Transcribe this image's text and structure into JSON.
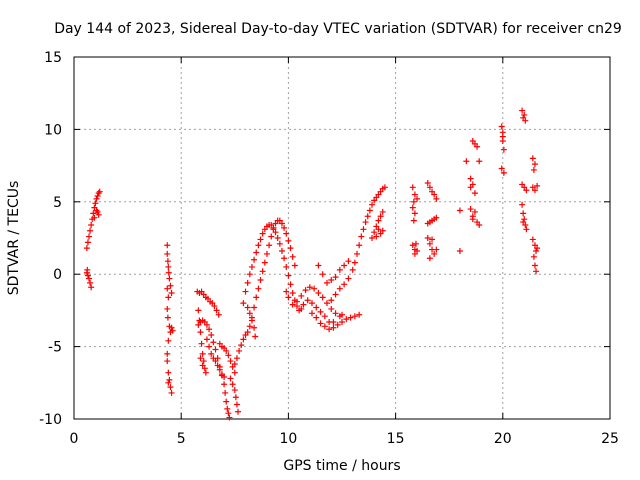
{
  "chart_data": {
    "type": "scatter",
    "title": "Day 144 of 2023, Sidereal Day-to-day VTEC variation (SDTVAR) for receiver cn29",
    "xlabel": "GPS time / hours",
    "ylabel": "SDTVAR / TECUs",
    "xlim": [
      0,
      25
    ],
    "ylim": [
      -10,
      15
    ],
    "xticks": [
      "0",
      "5",
      "10",
      "15",
      "20",
      "25"
    ],
    "yticks": [
      "-10",
      "-5",
      "0",
      "5",
      "10",
      "15"
    ],
    "grid": true,
    "marker": "+",
    "color": "#ff0000",
    "series": [
      {
        "name": "SDTVAR",
        "points": [
          [
            0.6,
            1.8
          ],
          [
            0.65,
            2.2
          ],
          [
            0.7,
            2.6
          ],
          [
            0.75,
            3.0
          ],
          [
            0.8,
            3.4
          ],
          [
            0.85,
            3.8
          ],
          [
            0.9,
            4.2
          ],
          [
            0.95,
            4.6
          ],
          [
            1.0,
            4.9
          ],
          [
            1.05,
            5.2
          ],
          [
            1.1,
            5.4
          ],
          [
            1.15,
            5.6
          ],
          [
            1.2,
            5.7
          ],
          [
            1.1,
            4.3
          ],
          [
            1.15,
            4.1
          ],
          [
            1.05,
            4.4
          ],
          [
            0.95,
            3.9
          ],
          [
            0.6,
            0.1
          ],
          [
            0.65,
            -0.1
          ],
          [
            0.7,
            -0.3
          ],
          [
            0.75,
            -0.6
          ],
          [
            0.8,
            -0.9
          ],
          [
            0.62,
            0.3
          ],
          [
            4.35,
            2.0
          ],
          [
            4.35,
            1.4
          ],
          [
            4.38,
            0.9
          ],
          [
            4.4,
            0.5
          ],
          [
            4.42,
            0.1
          ],
          [
            4.45,
            -0.3
          ],
          [
            4.5,
            -0.8
          ],
          [
            4.55,
            -1.3
          ],
          [
            4.35,
            -1.0
          ],
          [
            4.4,
            -1.6
          ],
          [
            4.35,
            -2.4
          ],
          [
            4.38,
            -3.0
          ],
          [
            4.45,
            -3.6
          ],
          [
            4.5,
            -4.0
          ],
          [
            4.4,
            -4.6
          ],
          [
            4.35,
            -5.5
          ],
          [
            4.35,
            -6.0
          ],
          [
            4.4,
            -6.8
          ],
          [
            4.45,
            -7.3
          ],
          [
            4.5,
            -7.8
          ],
          [
            4.55,
            -8.2
          ],
          [
            4.4,
            -7.5
          ],
          [
            4.55,
            -3.7
          ],
          [
            4.6,
            -3.9
          ],
          [
            5.75,
            -1.2
          ],
          [
            5.85,
            -1.3
          ],
          [
            5.95,
            -1.2
          ],
          [
            6.05,
            -1.4
          ],
          [
            6.15,
            -1.6
          ],
          [
            6.25,
            -1.7
          ],
          [
            6.35,
            -1.9
          ],
          [
            6.45,
            -2.0
          ],
          [
            6.55,
            -2.2
          ],
          [
            6.65,
            -2.5
          ],
          [
            6.75,
            -2.8
          ],
          [
            5.8,
            -2.5
          ],
          [
            5.85,
            -3.2
          ],
          [
            5.9,
            -4.0
          ],
          [
            5.95,
            -4.8
          ],
          [
            6.0,
            -5.5
          ],
          [
            6.05,
            -6.0
          ],
          [
            6.1,
            -6.5
          ],
          [
            6.15,
            -6.8
          ],
          [
            5.9,
            -5.8
          ],
          [
            6.0,
            -6.3
          ],
          [
            5.8,
            -3.5
          ],
          [
            5.9,
            -3.3
          ],
          [
            6.0,
            -3.2
          ],
          [
            6.1,
            -3.3
          ],
          [
            6.2,
            -3.5
          ],
          [
            6.3,
            -3.8
          ],
          [
            6.4,
            -4.2
          ],
          [
            6.5,
            -4.7
          ],
          [
            6.6,
            -5.2
          ],
          [
            6.7,
            -5.8
          ],
          [
            6.8,
            -6.4
          ],
          [
            6.9,
            -7.0
          ],
          [
            7.0,
            -7.6
          ],
          [
            7.05,
            -8.2
          ],
          [
            7.1,
            -8.8
          ],
          [
            7.15,
            -9.3
          ],
          [
            7.2,
            -9.6
          ],
          [
            7.25,
            -9.9
          ],
          [
            6.2,
            -4.5
          ],
          [
            6.3,
            -5.0
          ],
          [
            6.4,
            -5.5
          ],
          [
            6.5,
            -5.8
          ],
          [
            6.6,
            -6.0
          ],
          [
            6.7,
            -6.3
          ],
          [
            6.8,
            -6.6
          ],
          [
            6.9,
            -6.9
          ],
          [
            7.0,
            -7.1
          ],
          [
            6.8,
            -4.8
          ],
          [
            6.9,
            -5.0
          ],
          [
            7.0,
            -5.1
          ],
          [
            7.1,
            -5.3
          ],
          [
            7.2,
            -5.6
          ],
          [
            7.3,
            -6.0
          ],
          [
            7.4,
            -6.4
          ],
          [
            7.5,
            -6.8
          ],
          [
            7.3,
            -7.2
          ],
          [
            7.4,
            -7.6
          ],
          [
            7.5,
            -8.0
          ],
          [
            7.55,
            -8.5
          ],
          [
            7.6,
            -9.0
          ],
          [
            7.65,
            -9.5
          ],
          [
            7.5,
            -6.2
          ],
          [
            7.6,
            -5.8
          ],
          [
            7.7,
            -5.3
          ],
          [
            7.8,
            -4.9
          ],
          [
            7.9,
            -4.5
          ],
          [
            8.0,
            -4.2
          ],
          [
            8.1,
            -4.0
          ],
          [
            8.2,
            -3.6
          ],
          [
            8.3,
            -3.0
          ],
          [
            8.4,
            -2.3
          ],
          [
            8.5,
            -1.6
          ],
          [
            8.6,
            -1.0
          ],
          [
            8.7,
            -0.4
          ],
          [
            8.8,
            0.2
          ],
          [
            8.9,
            0.8
          ],
          [
            9.0,
            1.4
          ],
          [
            9.1,
            2.0
          ],
          [
            9.2,
            2.6
          ],
          [
            9.3,
            3.1
          ],
          [
            9.4,
            3.5
          ],
          [
            9.5,
            3.7
          ],
          [
            9.6,
            3.7
          ],
          [
            9.7,
            3.5
          ],
          [
            9.8,
            3.2
          ],
          [
            9.9,
            2.8
          ],
          [
            10.0,
            2.3
          ],
          [
            10.1,
            1.8
          ],
          [
            10.2,
            1.2
          ],
          [
            10.3,
            0.6
          ],
          [
            8.0,
            -1.2
          ],
          [
            8.1,
            -0.6
          ],
          [
            8.2,
            0.0
          ],
          [
            8.3,
            0.5
          ],
          [
            8.4,
            1.0
          ],
          [
            8.5,
            1.5
          ],
          [
            8.6,
            2.0
          ],
          [
            8.7,
            2.4
          ],
          [
            8.8,
            2.8
          ],
          [
            8.9,
            3.1
          ],
          [
            9.0,
            3.3
          ],
          [
            9.1,
            3.4
          ],
          [
            9.2,
            3.4
          ],
          [
            9.3,
            3.2
          ],
          [
            9.4,
            2.9
          ],
          [
            9.5,
            2.5
          ],
          [
            9.6,
            2.1
          ],
          [
            9.7,
            1.6
          ],
          [
            9.8,
            1.1
          ],
          [
            9.9,
            0.5
          ],
          [
            10.0,
            -0.1
          ],
          [
            10.1,
            -0.7
          ],
          [
            10.2,
            -1.3
          ],
          [
            10.3,
            -1.8
          ],
          [
            10.4,
            -2.2
          ],
          [
            10.5,
            -2.5
          ],
          [
            10.6,
            -2.4
          ],
          [
            10.7,
            -2.1
          ],
          [
            7.9,
            -2.0
          ],
          [
            8.1,
            -2.3
          ],
          [
            8.2,
            -2.7
          ],
          [
            8.3,
            -3.2
          ],
          [
            8.4,
            -3.7
          ],
          [
            8.45,
            -4.3
          ],
          [
            9.9,
            -1.2
          ],
          [
            10.0,
            -1.6
          ],
          [
            10.2,
            -2.1
          ],
          [
            10.4,
            -1.9
          ],
          [
            10.6,
            -1.5
          ],
          [
            10.8,
            -1.1
          ],
          [
            11.0,
            -0.9
          ],
          [
            11.2,
            -1.0
          ],
          [
            11.4,
            -1.3
          ],
          [
            11.6,
            -1.6
          ],
          [
            11.8,
            -2.0
          ],
          [
            12.0,
            -2.4
          ],
          [
            12.2,
            -2.7
          ],
          [
            12.4,
            -2.9
          ],
          [
            12.5,
            -2.8
          ],
          [
            10.9,
            -1.8
          ],
          [
            11.1,
            -2.0
          ],
          [
            11.3,
            -2.3
          ],
          [
            11.5,
            -2.6
          ],
          [
            11.7,
            -2.9
          ],
          [
            11.9,
            -3.3
          ],
          [
            12.1,
            -3.7
          ],
          [
            12.3,
            -3.5
          ],
          [
            12.5,
            -3.3
          ],
          [
            12.7,
            -3.1
          ],
          [
            12.9,
            -3.0
          ],
          [
            13.1,
            -2.9
          ],
          [
            13.3,
            -2.8
          ],
          [
            11.5,
            -3.4
          ],
          [
            11.7,
            -3.6
          ],
          [
            11.9,
            -3.8
          ],
          [
            12.1,
            -3.3
          ],
          [
            11.3,
            -3.0
          ],
          [
            11.1,
            -2.7
          ],
          [
            11.4,
            0.6
          ],
          [
            11.6,
            0.0
          ],
          [
            11.8,
            -0.6
          ],
          [
            12.0,
            -0.4
          ],
          [
            12.2,
            -0.2
          ],
          [
            12.4,
            0.3
          ],
          [
            12.6,
            0.6
          ],
          [
            12.8,
            0.9
          ],
          [
            12.0,
            -1.8
          ],
          [
            12.2,
            -1.4
          ],
          [
            12.4,
            -1.0
          ],
          [
            12.6,
            -0.7
          ],
          [
            12.8,
            -0.3
          ],
          [
            13.0,
            0.3
          ],
          [
            13.1,
            0.8
          ],
          [
            13.2,
            1.4
          ],
          [
            13.3,
            2.0
          ],
          [
            13.4,
            2.6
          ],
          [
            13.5,
            3.1
          ],
          [
            13.6,
            3.6
          ],
          [
            13.7,
            4.0
          ],
          [
            13.8,
            4.4
          ],
          [
            13.9,
            4.8
          ],
          [
            14.0,
            5.1
          ],
          [
            14.1,
            5.3
          ],
          [
            14.2,
            5.5
          ],
          [
            14.3,
            5.7
          ],
          [
            14.4,
            5.9
          ],
          [
            14.5,
            6.0
          ],
          [
            13.9,
            2.5
          ],
          [
            14.0,
            2.9
          ],
          [
            14.1,
            3.3
          ],
          [
            14.2,
            3.7
          ],
          [
            14.3,
            4.0
          ],
          [
            14.4,
            4.3
          ],
          [
            14.1,
            2.6
          ],
          [
            14.3,
            2.8
          ],
          [
            14.4,
            3.0
          ],
          [
            14.2,
            3.1
          ],
          [
            15.8,
            6.0
          ],
          [
            15.9,
            5.5
          ],
          [
            15.85,
            5.0
          ],
          [
            15.8,
            4.6
          ],
          [
            15.9,
            4.2
          ],
          [
            16.0,
            5.2
          ],
          [
            15.85,
            3.7
          ],
          [
            15.8,
            2.0
          ],
          [
            15.9,
            1.7
          ],
          [
            16.0,
            1.6
          ],
          [
            15.9,
            1.4
          ],
          [
            15.95,
            2.1
          ],
          [
            16.5,
            6.3
          ],
          [
            16.6,
            6.0
          ],
          [
            16.7,
            5.7
          ],
          [
            16.8,
            5.5
          ],
          [
            16.9,
            5.2
          ],
          [
            16.5,
            3.5
          ],
          [
            16.6,
            3.6
          ],
          [
            16.7,
            3.7
          ],
          [
            16.8,
            3.8
          ],
          [
            16.9,
            3.9
          ],
          [
            16.5,
            2.5
          ],
          [
            16.6,
            2.1
          ],
          [
            16.7,
            1.7
          ],
          [
            16.8,
            1.4
          ],
          [
            16.9,
            1.7
          ],
          [
            16.6,
            1.1
          ],
          [
            16.7,
            2.4
          ],
          [
            18.0,
            4.4
          ],
          [
            18.0,
            1.6
          ],
          [
            18.3,
            7.8
          ],
          [
            18.5,
            6.6
          ],
          [
            18.6,
            6.2
          ],
          [
            18.7,
            5.6
          ],
          [
            18.6,
            9.2
          ],
          [
            18.7,
            9.0
          ],
          [
            18.8,
            8.8
          ],
          [
            18.9,
            7.8
          ],
          [
            18.5,
            4.5
          ],
          [
            18.6,
            4.0
          ],
          [
            18.8,
            3.6
          ],
          [
            18.9,
            3.4
          ],
          [
            18.7,
            4.3
          ],
          [
            18.6,
            3.8
          ],
          [
            18.5,
            6.0
          ],
          [
            19.95,
            10.2
          ],
          [
            20.0,
            9.8
          ],
          [
            20.0,
            9.2
          ],
          [
            20.05,
            8.6
          ],
          [
            19.95,
            7.3
          ],
          [
            20.05,
            7.0
          ],
          [
            20.0,
            9.5
          ],
          [
            20.9,
            11.3
          ],
          [
            21.0,
            11.0
          ],
          [
            21.05,
            10.6
          ],
          [
            20.95,
            10.8
          ],
          [
            20.9,
            6.2
          ],
          [
            21.0,
            6.0
          ],
          [
            21.1,
            5.8
          ],
          [
            20.9,
            4.8
          ],
          [
            20.95,
            4.2
          ],
          [
            21.0,
            3.8
          ],
          [
            21.05,
            3.4
          ],
          [
            21.1,
            3.1
          ],
          [
            20.95,
            3.6
          ],
          [
            21.4,
            8.0
          ],
          [
            21.5,
            7.6
          ],
          [
            21.45,
            7.2
          ],
          [
            21.4,
            6.0
          ],
          [
            21.5,
            5.8
          ],
          [
            21.6,
            6.1
          ],
          [
            21.4,
            2.4
          ],
          [
            21.5,
            2.0
          ],
          [
            21.55,
            1.6
          ],
          [
            21.45,
            1.2
          ],
          [
            21.5,
            0.6
          ],
          [
            21.55,
            0.2
          ],
          [
            21.6,
            1.8
          ]
        ]
      }
    ]
  }
}
